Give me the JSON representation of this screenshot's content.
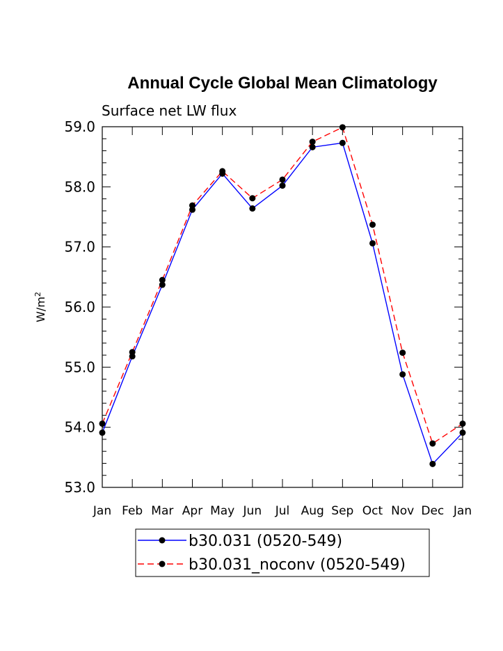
{
  "chart_data": {
    "type": "line",
    "title": "Annual Cycle Global Mean Climatology",
    "subtitle": "Surface net LW flux",
    "ylabel_base": "W/m",
    "ylabel_sup": "2",
    "xlabel": "",
    "categories": [
      "Jan",
      "Feb",
      "Mar",
      "Apr",
      "May",
      "Jun",
      "Jul",
      "Aug",
      "Sep",
      "Oct",
      "Nov",
      "Dec",
      "Jan"
    ],
    "ylim": [
      53.0,
      59.0
    ],
    "yticks": [
      53.0,
      54.0,
      55.0,
      56.0,
      57.0,
      58.0,
      59.0
    ],
    "ytick_labels": [
      "53.0",
      "54.0",
      "55.0",
      "56.0",
      "57.0",
      "58.0",
      "59.0"
    ],
    "legend_position": "bottom-center",
    "series": [
      {
        "name": "b30.031 (0520-549)",
        "color": "#0000ff",
        "dash": "solid",
        "values": [
          53.91,
          55.18,
          56.37,
          57.62,
          58.22,
          57.64,
          58.02,
          58.66,
          58.73,
          57.06,
          54.88,
          53.39,
          53.91
        ]
      },
      {
        "name": "b30.031_noconv (0520-549)",
        "color": "#ff0000",
        "dash": "dashed",
        "values": [
          54.06,
          55.25,
          56.45,
          57.69,
          58.26,
          57.81,
          58.12,
          58.75,
          58.99,
          57.37,
          55.24,
          53.73,
          54.06
        ]
      }
    ]
  }
}
